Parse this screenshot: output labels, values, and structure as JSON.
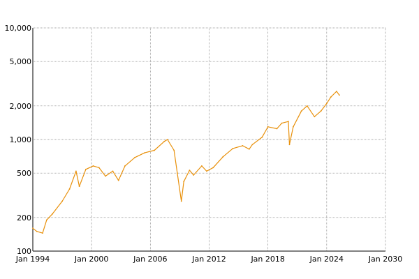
{
  "chart_data": {
    "type": "line",
    "title": "",
    "xlabel": "",
    "ylabel": "",
    "y_scale": "log",
    "grid": true,
    "legend": "none",
    "line_color": "#e8900a",
    "xlim": [
      "1994-01-01",
      "2030-01-01"
    ],
    "ylim": [
      100,
      10000
    ],
    "x_ticks": [
      {
        "value": "1994-01-01",
        "label": "Jan 1994"
      },
      {
        "value": "2000-01-01",
        "label": "Jan 2000"
      },
      {
        "value": "2006-01-01",
        "label": "Jan 2006"
      },
      {
        "value": "2012-01-01",
        "label": "Jan 2012"
      },
      {
        "value": "2018-01-01",
        "label": "Jan 2018"
      },
      {
        "value": "2024-01-01",
        "label": "Jan 2024"
      },
      {
        "value": "2030-01-01",
        "label": "Jan 2030"
      }
    ],
    "y_ticks": [
      {
        "value": 100,
        "label": "100"
      },
      {
        "value": 200,
        "label": "200"
      },
      {
        "value": 500,
        "label": "500"
      },
      {
        "value": 1000,
        "label": "1,000"
      },
      {
        "value": 2000,
        "label": "2,000"
      },
      {
        "value": 5000,
        "label": "5,000"
      },
      {
        "value": 10000,
        "label": "10,000"
      }
    ],
    "x": [
      "1994-01-01",
      "1994-06-01",
      "1995-01-01",
      "1995-06-01",
      "1996-01-01",
      "1997-01-01",
      "1997-10-01",
      "1998-06-01",
      "1998-10-01",
      "1999-06-01",
      "2000-03-01",
      "2000-10-01",
      "2001-06-01",
      "2002-03-01",
      "2002-10-01",
      "2003-06-01",
      "2004-06-01",
      "2005-06-01",
      "2006-06-01",
      "2007-06-01",
      "2007-10-01",
      "2008-06-01",
      "2008-10-01",
      "2009-03-01",
      "2009-06-01",
      "2010-01-01",
      "2010-06-01",
      "2011-04-01",
      "2011-10-01",
      "2012-06-01",
      "2013-06-01",
      "2014-06-01",
      "2015-06-01",
      "2016-02-01",
      "2016-06-01",
      "2017-06-01",
      "2018-01-01",
      "2018-12-01",
      "2019-06-01",
      "2020-02-01",
      "2020-03-15",
      "2020-08-01",
      "2021-06-01",
      "2022-01-01",
      "2022-10-01",
      "2023-06-01",
      "2024-01-01",
      "2024-06-01",
      "2025-01-01",
      "2025-04-15"
    ],
    "values": [
      160,
      150,
      145,
      190,
      215,
      280,
      360,
      520,
      380,
      540,
      580,
      560,
      470,
      520,
      430,
      580,
      690,
      760,
      800,
      960,
      1000,
      800,
      500,
      280,
      420,
      530,
      480,
      580,
      520,
      560,
      700,
      830,
      880,
      820,
      900,
      1050,
      1300,
      1250,
      1400,
      1450,
      900,
      1300,
      1800,
      2000,
      1600,
      1800,
      2100,
      2400,
      2700,
      2500
    ]
  }
}
